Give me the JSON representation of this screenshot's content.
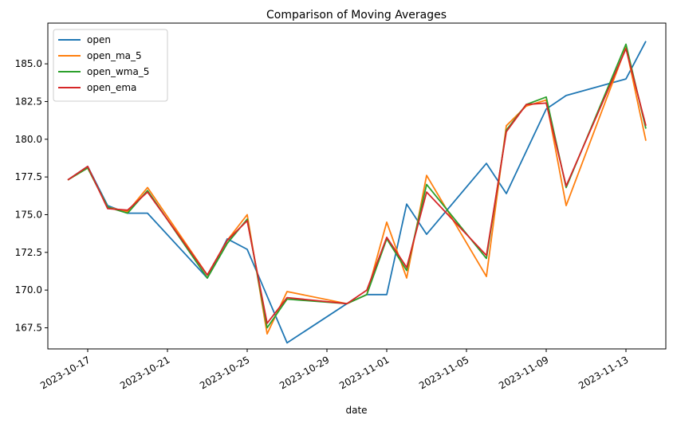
{
  "chart_data": {
    "type": "line",
    "title": "Comparison of Moving Averages",
    "xlabel": "date",
    "ylabel": "",
    "x_start": "2023-10-16",
    "x_end": "2023-11-14",
    "ylim": [
      166.1,
      187.7
    ],
    "x_ticks": [
      "2023-10-17",
      "2023-10-21",
      "2023-10-25",
      "2023-10-29",
      "2023-11-01",
      "2023-11-05",
      "2023-11-09",
      "2023-11-13"
    ],
    "y_ticks": [
      167.5,
      170.0,
      172.5,
      175.0,
      177.5,
      180.0,
      182.5,
      185.0
    ],
    "y_tick_labels": [
      "167.5",
      "170.0",
      "172.5",
      "175.0",
      "177.5",
      "180.0",
      "182.5",
      "185.0"
    ],
    "legend_position": "top-left",
    "grid": false,
    "series": [
      {
        "name": "open",
        "color": "#1f77b4",
        "x": [
          "2023-10-16",
          "2023-10-17",
          "2023-10-18",
          "2023-10-19",
          "2023-10-20",
          "2023-10-23",
          "2023-10-24",
          "2023-10-25",
          "2023-10-26",
          "2023-10-27",
          "2023-10-30",
          "2023-10-31",
          "2023-11-01",
          "2023-11-02",
          "2023-11-03",
          "2023-11-06",
          "2023-11-07",
          "2023-11-08",
          "2023-11-09",
          "2023-11-10",
          "2023-11-13",
          "2023-11-14"
        ],
        "values": [
          177.3,
          178.2,
          175.6,
          175.1,
          175.1,
          170.8,
          173.4,
          172.7,
          169.6,
          166.5,
          169.1,
          169.7,
          169.7,
          175.7,
          173.7,
          178.4,
          176.4,
          179.2,
          182.0,
          182.9,
          184.0,
          186.5
        ]
      },
      {
        "name": "open_ma_5",
        "color": "#ff7f0e",
        "x": [
          "2023-10-16",
          "2023-10-17",
          "2023-10-18",
          "2023-10-19",
          "2023-10-20",
          "2023-10-23",
          "2023-10-24",
          "2023-10-25",
          "2023-10-26",
          "2023-10-27",
          "2023-10-30",
          "2023-10-31",
          "2023-11-01",
          "2023-11-02",
          "2023-11-03",
          "2023-11-06",
          "2023-11-07",
          "2023-11-08",
          "2023-11-09",
          "2023-11-10",
          "2023-11-13",
          "2023-11-14"
        ],
        "values": [
          177.3,
          178.1,
          175.5,
          175.2,
          176.8,
          171.0,
          173.3,
          175.0,
          167.1,
          169.9,
          169.1,
          169.7,
          174.5,
          170.8,
          177.6,
          170.9,
          180.9,
          182.2,
          182.6,
          175.6,
          186.1,
          179.9
        ]
      },
      {
        "name": "open_wma_5",
        "color": "#2ca02c",
        "x": [
          "2023-10-16",
          "2023-10-17",
          "2023-10-18",
          "2023-10-19",
          "2023-10-20",
          "2023-10-23",
          "2023-10-24",
          "2023-10-25",
          "2023-10-26",
          "2023-10-27",
          "2023-10-30",
          "2023-10-31",
          "2023-11-01",
          "2023-11-02",
          "2023-11-03",
          "2023-11-06",
          "2023-11-07",
          "2023-11-08",
          "2023-11-09",
          "2023-11-10",
          "2023-11-13",
          "2023-11-14"
        ],
        "values": [
          177.3,
          178.1,
          175.5,
          175.1,
          176.6,
          170.8,
          173.1,
          174.7,
          167.5,
          169.4,
          169.1,
          169.7,
          173.4,
          171.3,
          177.0,
          172.1,
          180.6,
          182.3,
          182.8,
          176.8,
          186.3,
          180.7
        ]
      },
      {
        "name": "open_ema",
        "color": "#d62728",
        "x": [
          "2023-10-16",
          "2023-10-17",
          "2023-10-18",
          "2023-10-19",
          "2023-10-20",
          "2023-10-23",
          "2023-10-24",
          "2023-10-25",
          "2023-10-26",
          "2023-10-27",
          "2023-10-30",
          "2023-10-31",
          "2023-11-01",
          "2023-11-02",
          "2023-11-03",
          "2023-11-06",
          "2023-11-07",
          "2023-11-08",
          "2023-11-09",
          "2023-11-10",
          "2023-11-13",
          "2023-11-14"
        ],
        "values": [
          177.3,
          178.2,
          175.4,
          175.3,
          176.5,
          171.0,
          173.3,
          174.6,
          167.8,
          169.5,
          169.1,
          170.0,
          173.5,
          171.5,
          176.5,
          172.3,
          180.5,
          182.3,
          182.4,
          176.9,
          186.0,
          180.9
        ]
      }
    ]
  }
}
